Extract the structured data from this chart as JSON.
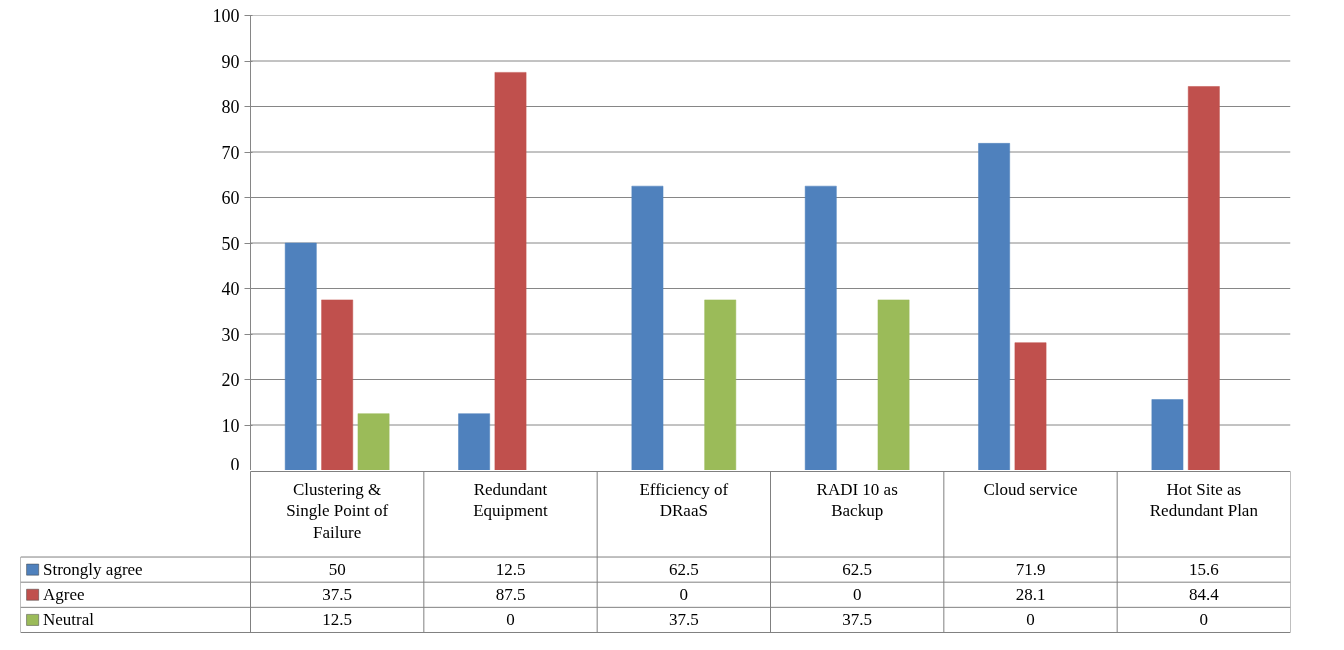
{
  "chart_data": {
    "type": "bar",
    "categories": [
      "Clustering & Single Point of Failure",
      "Redundant Equipment",
      "Efficiency of DRaaS",
      "RADI 10 as Backup",
      "Cloud service",
      "Hot Site as Redundant Plan"
    ],
    "series": [
      {
        "name": "Strongly agree",
        "color": "#4f81bd",
        "values": [
          50,
          12.5,
          62.5,
          62.5,
          71.9,
          15.6
        ]
      },
      {
        "name": "Agree",
        "color": "#c0504d",
        "values": [
          37.5,
          87.5,
          0,
          0,
          28.1,
          84.4
        ]
      },
      {
        "name": "Neutral",
        "color": "#9bbb59",
        "values": [
          12.5,
          0,
          37.5,
          37.5,
          0,
          0
        ]
      }
    ],
    "ylim": [
      0,
      100
    ],
    "yticks": [
      0,
      10,
      20,
      30,
      40,
      50,
      60,
      70,
      80,
      90,
      100
    ],
    "grid": "y",
    "data_labels": true,
    "legend": "bottom"
  }
}
